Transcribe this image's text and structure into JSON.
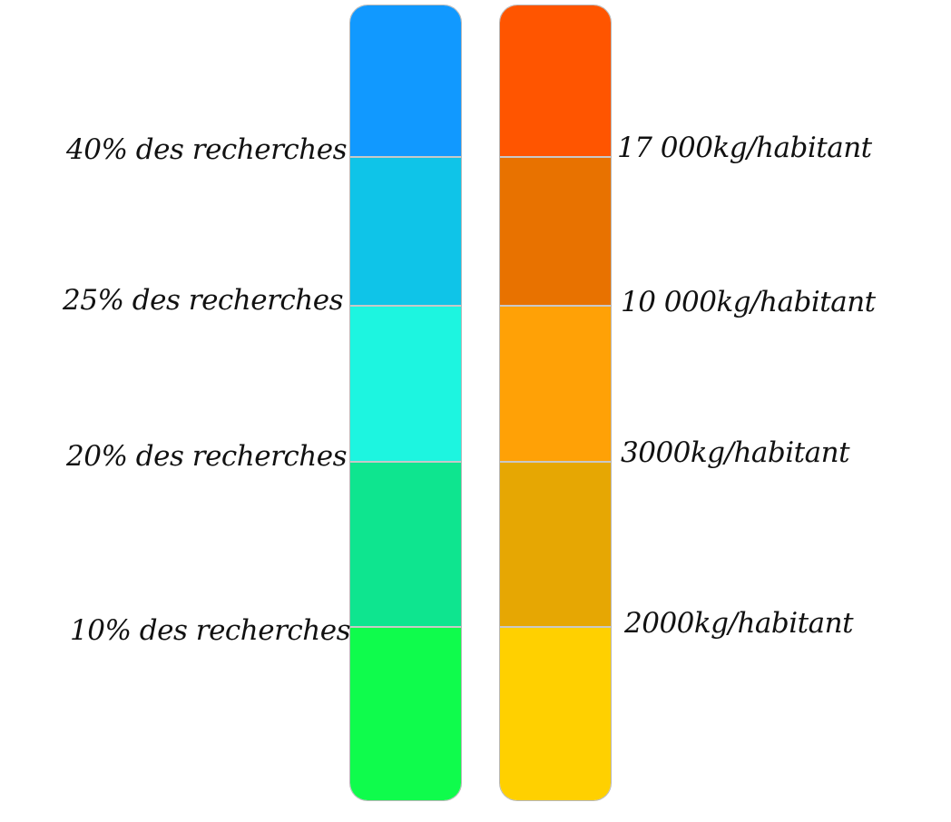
{
  "left_scale": {
    "colors": [
      "#1199ff",
      "#0fc4e8",
      "#1df5e0",
      "#0ee58f",
      "#0ffc4c"
    ],
    "labels": [
      "40% des recherches",
      "25% des recherches",
      "20% des recherches",
      "10% des recherches"
    ]
  },
  "right_scale": {
    "colors": [
      "#ff5500",
      "#e87200",
      "#ffa106",
      "#e6a703",
      "#ffd000"
    ],
    "labels": [
      "17 000kg/habitant",
      "10 000kg/habitant",
      "3000kg/habitant",
      "2000kg/habitant"
    ]
  }
}
